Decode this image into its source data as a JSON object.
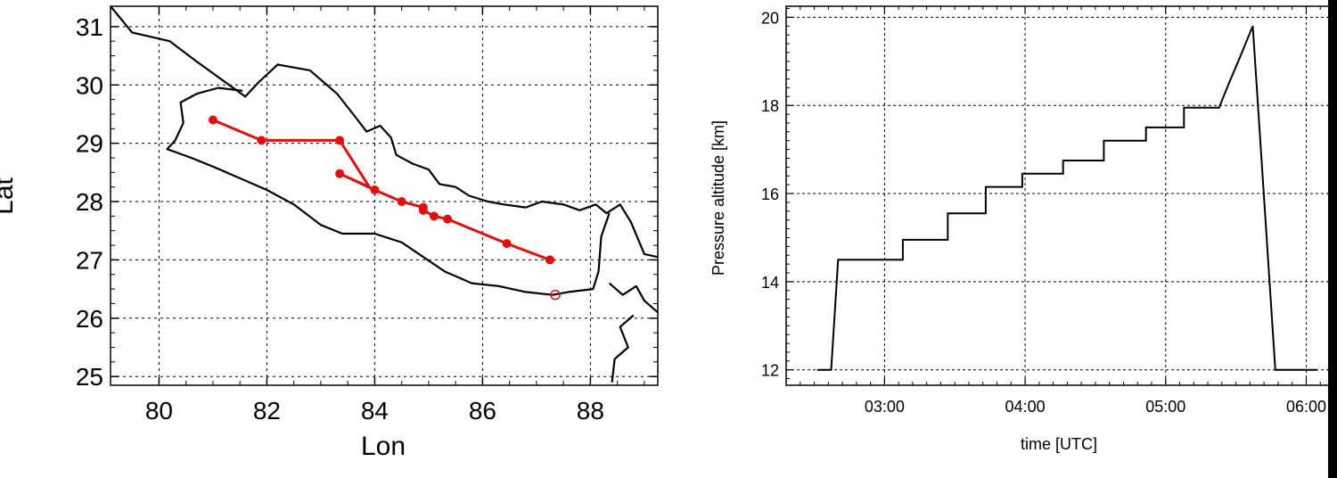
{
  "chart_data": [
    {
      "type": "line",
      "xlabel": "Lon",
      "ylabel": "Lat",
      "xlim": [
        79.1,
        89.25
      ],
      "ylim": [
        24.85,
        31.35
      ],
      "xticks": [
        80,
        82,
        84,
        86,
        88
      ],
      "yticks": [
        25,
        26,
        27,
        28,
        29,
        30,
        31
      ],
      "grid": true,
      "colors": {
        "track": "#e01010",
        "border": "#000000"
      },
      "track": [
        [
          81.0,
          29.4
        ],
        [
          81.9,
          29.05
        ],
        [
          83.35,
          29.05
        ],
        [
          83.9,
          28.25
        ],
        [
          83.35,
          28.48
        ],
        [
          84.0,
          28.2
        ],
        [
          84.5,
          28.0
        ],
        [
          84.9,
          27.9
        ],
        [
          84.9,
          27.85
        ],
        [
          85.1,
          27.75
        ],
        [
          85.35,
          27.7
        ],
        [
          86.45,
          27.28
        ],
        [
          87.25,
          27.0
        ]
      ],
      "track_markers": [
        [
          81.0,
          29.4
        ],
        [
          81.9,
          29.05
        ],
        [
          83.35,
          29.05
        ],
        [
          83.35,
          28.48
        ],
        [
          84.0,
          28.2
        ],
        [
          84.5,
          28.0
        ],
        [
          84.9,
          27.9
        ],
        [
          84.9,
          27.85
        ],
        [
          85.1,
          27.75
        ],
        [
          85.35,
          27.7
        ],
        [
          86.45,
          27.28
        ],
        [
          87.25,
          27.0
        ]
      ],
      "open_marker": [
        87.35,
        26.4
      ],
      "borders": [
        [
          [
            79.1,
            31.35
          ],
          [
            79.5,
            30.9
          ],
          [
            80.2,
            30.75
          ],
          [
            80.7,
            30.4
          ],
          [
            81.3,
            30.0
          ],
          [
            81.6,
            29.8
          ],
          [
            81.85,
            30.05
          ],
          [
            82.2,
            30.35
          ],
          [
            82.8,
            30.25
          ],
          [
            83.3,
            29.85
          ],
          [
            83.6,
            29.5
          ],
          [
            83.85,
            29.2
          ],
          [
            84.1,
            29.3
          ],
          [
            84.3,
            29.1
          ],
          [
            84.4,
            28.8
          ],
          [
            84.7,
            28.65
          ],
          [
            85.0,
            28.55
          ],
          [
            85.2,
            28.3
          ],
          [
            85.5,
            28.25
          ],
          [
            85.75,
            28.1
          ],
          [
            86.1,
            28.0
          ],
          [
            86.4,
            27.95
          ],
          [
            86.8,
            27.9
          ],
          [
            87.1,
            28.0
          ],
          [
            87.5,
            27.95
          ],
          [
            87.8,
            27.85
          ],
          [
            88.1,
            27.95
          ],
          [
            88.3,
            27.8
          ],
          [
            88.55,
            27.95
          ],
          [
            88.75,
            27.65
          ],
          [
            89.0,
            27.1
          ],
          [
            89.25,
            27.05
          ]
        ],
        [
          [
            81.55,
            29.9
          ],
          [
            81.1,
            29.95
          ],
          [
            80.7,
            29.85
          ],
          [
            80.4,
            29.7
          ],
          [
            80.45,
            29.35
          ],
          [
            80.3,
            29.05
          ],
          [
            80.15,
            28.9
          ],
          [
            80.6,
            28.75
          ],
          [
            81.0,
            28.6
          ],
          [
            81.5,
            28.4
          ],
          [
            82.0,
            28.2
          ],
          [
            82.5,
            27.95
          ],
          [
            83.0,
            27.6
          ],
          [
            83.4,
            27.45
          ],
          [
            84.0,
            27.45
          ],
          [
            84.5,
            27.3
          ],
          [
            84.9,
            27.05
          ],
          [
            85.3,
            26.8
          ],
          [
            85.8,
            26.6
          ],
          [
            86.3,
            26.55
          ],
          [
            86.8,
            26.45
          ],
          [
            87.3,
            26.4
          ],
          [
            87.6,
            26.45
          ],
          [
            88.05,
            26.5
          ],
          [
            88.15,
            26.8
          ],
          [
            88.2,
            27.4
          ],
          [
            88.35,
            27.8
          ]
        ],
        [
          [
            88.35,
            26.6
          ],
          [
            88.6,
            26.4
          ],
          [
            88.85,
            26.55
          ],
          [
            89.0,
            26.3
          ],
          [
            89.25,
            26.1
          ]
        ],
        [
          [
            88.4,
            24.9
          ],
          [
            88.45,
            25.3
          ],
          [
            88.7,
            25.5
          ],
          [
            88.55,
            25.85
          ],
          [
            88.8,
            26.05
          ]
        ]
      ]
    },
    {
      "type": "line",
      "xlabel": "time [UTC]",
      "ylabel": "Pressure altitude [km]",
      "xlim": [
        2.3,
        6.2
      ],
      "ylim": [
        11.65,
        20.25
      ],
      "xticks": [
        {
          "value": 3.0,
          "label": "03:00"
        },
        {
          "value": 4.0,
          "label": "04:00"
        },
        {
          "value": 5.0,
          "label": "05:00"
        },
        {
          "value": 6.0,
          "label": "06:00"
        }
      ],
      "yticks": [
        12,
        14,
        16,
        18,
        20
      ],
      "grid": true,
      "colors": {
        "line": "#000000"
      },
      "series": [
        {
          "x": [
            2.52,
            2.62,
            2.67,
            3.13,
            3.13,
            3.45,
            3.45,
            3.72,
            3.72,
            3.98,
            3.98,
            4.27,
            4.27,
            4.56,
            4.56,
            4.86,
            4.86,
            5.13,
            5.13,
            5.38,
            5.45,
            5.53,
            5.62,
            5.78,
            6.08
          ],
          "y": [
            12.0,
            12.0,
            14.5,
            14.5,
            14.95,
            14.95,
            15.55,
            15.55,
            16.15,
            16.15,
            16.45,
            16.45,
            16.75,
            16.75,
            17.2,
            17.2,
            17.5,
            17.5,
            17.95,
            17.95,
            18.5,
            19.1,
            19.8,
            12.0,
            12.0
          ]
        }
      ]
    }
  ]
}
